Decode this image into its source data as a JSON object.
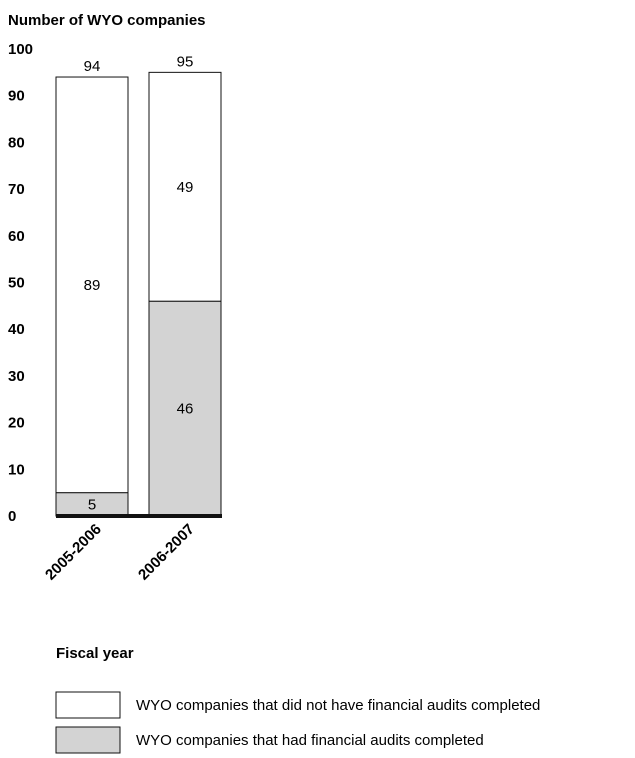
{
  "chart_data": {
    "type": "bar",
    "stacked": true,
    "ylabel": "Number of WYO companies",
    "xlabel": "Fiscal year",
    "categories": [
      "2005-2006",
      "2006-2007"
    ],
    "ylim": [
      0,
      100
    ],
    "yticks": [
      0,
      10,
      20,
      30,
      40,
      50,
      60,
      70,
      80,
      90,
      100
    ],
    "series": [
      {
        "name": "WYO companies that had financial audits completed",
        "values": [
          5,
          46
        ],
        "color": "#d3d3d3"
      },
      {
        "name": "WYO companies that did not have financial audits completed",
        "values": [
          89,
          49
        ],
        "color": "#ffffff"
      }
    ],
    "totals": [
      94,
      95
    ],
    "legend_position": "bottom",
    "grid": false
  }
}
